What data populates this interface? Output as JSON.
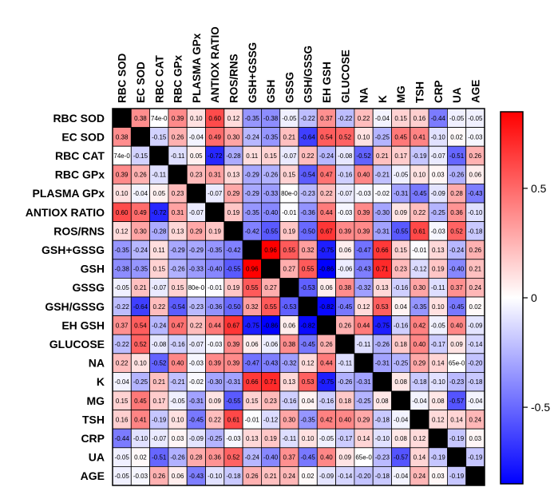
{
  "chart_data": {
    "type": "heatmap",
    "title": "",
    "variables": [
      "RBC SOD",
      "EC SOD",
      "RBC CAT",
      "RBC GPx",
      "PLASMA GPx",
      "ANTIOX RATIO",
      "ROS/RNS",
      "GSH+GSSG",
      "GSH",
      "GSSG",
      "GSH/GSSG",
      "EH GSH",
      "GLUCOSE",
      "NA",
      "K",
      "MG",
      "TSH",
      "CRP",
      "UA",
      "AGE"
    ],
    "matrix": [
      [
        null,
        0.38,
        "74e-0",
        0.39,
        0.1,
        0.6,
        0.12,
        -0.35,
        -0.38,
        -0.05,
        -0.22,
        0.37,
        -0.22,
        0.22,
        -0.04,
        0.15,
        0.16,
        -0.44,
        -0.05,
        -0.05
      ],
      [
        0.38,
        null,
        -0.15,
        0.26,
        -0.04,
        0.49,
        0.3,
        -0.24,
        -0.35,
        0.21,
        -0.64,
        0.54,
        0.52,
        0.1,
        -0.25,
        0.45,
        0.41,
        -0.1,
        0.02,
        -0.03
      ],
      [
        "74e-0",
        -0.15,
        null,
        -0.11,
        0.05,
        -0.72,
        -0.28,
        0.11,
        0.15,
        -0.07,
        0.22,
        -0.24,
        -0.08,
        -0.52,
        0.21,
        0.17,
        -0.19,
        -0.07,
        -0.51,
        0.26
      ],
      [
        0.39,
        0.26,
        -0.11,
        null,
        0.23,
        0.31,
        0.13,
        -0.29,
        -0.26,
        0.15,
        -0.54,
        0.47,
        -0.16,
        0.4,
        -0.21,
        -0.05,
        0.1,
        0.03,
        -0.26,
        0.06
      ],
      [
        0.1,
        -0.04,
        0.05,
        0.23,
        null,
        -0.07,
        0.29,
        -0.29,
        -0.33,
        "80e-0",
        -0.23,
        0.22,
        -0.07,
        -0.03,
        -0.02,
        -0.31,
        -0.45,
        -0.09,
        0.28,
        -0.43
      ],
      [
        0.6,
        0.49,
        -0.72,
        0.31,
        -0.07,
        null,
        0.19,
        -0.35,
        -0.4,
        -0.01,
        -0.36,
        0.44,
        -0.03,
        0.39,
        -0.3,
        0.09,
        0.22,
        -0.25,
        0.36,
        -0.1
      ],
      [
        0.12,
        0.3,
        -0.28,
        0.13,
        0.29,
        0.19,
        null,
        -0.42,
        -0.55,
        0.19,
        -0.5,
        0.67,
        0.39,
        0.39,
        -0.31,
        -0.55,
        0.61,
        -0.03,
        0.52,
        -0.18
      ],
      [
        -0.35,
        -0.24,
        0.11,
        -0.29,
        -0.29,
        -0.35,
        -0.42,
        null,
        0.96,
        0.55,
        0.32,
        -0.75,
        0.06,
        -0.47,
        0.66,
        0.15,
        -0.01,
        0.13,
        -0.24,
        0.26
      ],
      [
        -0.38,
        -0.35,
        0.15,
        -0.26,
        -0.33,
        -0.4,
        -0.55,
        0.96,
        null,
        0.27,
        0.55,
        -0.86,
        -0.06,
        -0.43,
        0.71,
        0.23,
        -0.12,
        0.19,
        -0.4,
        0.21
      ],
      [
        -0.05,
        0.21,
        -0.07,
        0.15,
        "80e-0",
        -0.01,
        0.19,
        0.55,
        0.27,
        null,
        -0.53,
        0.06,
        0.38,
        -0.32,
        0.13,
        -0.16,
        0.3,
        -0.11,
        0.37,
        0.24
      ],
      [
        -0.22,
        -0.64,
        0.22,
        -0.54,
        -0.23,
        -0.36,
        -0.5,
        0.32,
        0.55,
        -0.53,
        null,
        -0.82,
        -0.45,
        0.12,
        0.53,
        0.04,
        -0.35,
        0.1,
        -0.45,
        0.02
      ],
      [
        0.37,
        0.54,
        -0.24,
        0.47,
        0.22,
        0.44,
        0.67,
        -0.75,
        -0.86,
        0.06,
        -0.82,
        null,
        0.26,
        0.44,
        -0.75,
        -0.16,
        0.42,
        -0.05,
        0.4,
        -0.09
      ],
      [
        -0.22,
        0.52,
        -0.08,
        -0.16,
        -0.07,
        -0.03,
        0.39,
        0.06,
        -0.06,
        0.38,
        -0.45,
        0.26,
        null,
        -0.11,
        -0.26,
        0.18,
        0.4,
        -0.17,
        0.09,
        -0.14
      ],
      [
        0.22,
        0.1,
        -0.52,
        0.4,
        -0.03,
        0.39,
        0.39,
        -0.47,
        -0.43,
        -0.32,
        0.12,
        0.44,
        -0.11,
        null,
        -0.31,
        -0.25,
        0.29,
        0.14,
        "65e-0",
        -0.2
      ],
      [
        -0.04,
        -0.25,
        0.21,
        -0.21,
        -0.02,
        -0.3,
        -0.31,
        0.66,
        0.71,
        0.13,
        0.53,
        -0.75,
        -0.26,
        -0.31,
        null,
        0.08,
        -0.18,
        -0.1,
        -0.23,
        -0.18
      ],
      [
        0.15,
        0.45,
        0.17,
        -0.05,
        -0.31,
        0.09,
        -0.55,
        0.15,
        0.23,
        -0.16,
        0.04,
        -0.16,
        0.18,
        -0.25,
        0.08,
        null,
        -0.04,
        0.08,
        -0.57,
        -0.04
      ],
      [
        0.16,
        0.41,
        -0.19,
        0.1,
        -0.45,
        0.22,
        0.61,
        -0.01,
        -0.12,
        0.3,
        -0.35,
        0.42,
        0.4,
        0.29,
        -0.18,
        -0.04,
        null,
        0.12,
        0.14,
        0.24
      ],
      [
        -0.44,
        -0.1,
        -0.07,
        0.03,
        -0.09,
        -0.25,
        -0.03,
        0.13,
        0.19,
        -0.11,
        0.1,
        -0.05,
        -0.17,
        0.14,
        -0.1,
        0.08,
        0.12,
        null,
        -0.19,
        0.03
      ],
      [
        -0.05,
        0.02,
        -0.51,
        -0.26,
        0.28,
        0.36,
        0.52,
        -0.24,
        -0.4,
        0.37,
        -0.45,
        0.4,
        0.09,
        "65e-0",
        -0.23,
        -0.57,
        0.14,
        -0.19,
        null,
        -0.19
      ],
      [
        -0.05,
        -0.03,
        0.26,
        0.06,
        -0.43,
        -0.1,
        -0.18,
        0.26,
        0.21,
        0.24,
        0.02,
        -0.09,
        -0.14,
        -0.2,
        -0.18,
        -0.04,
        0.24,
        0.03,
        -0.19,
        null
      ]
    ],
    "color_scale": {
      "min": -0.85,
      "max": 0.85,
      "neg_color": "#0000ff",
      "mid_color": "#ffffff",
      "pos_color": "#ff0000",
      "diag_color": "#000000"
    },
    "colorbar": {
      "ticks": [
        0.5,
        0,
        -0.5
      ],
      "tick_labels": [
        "0.5",
        "0",
        "-0.5"
      ]
    }
  }
}
